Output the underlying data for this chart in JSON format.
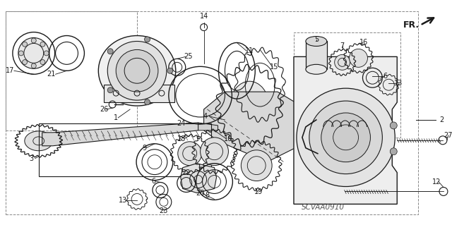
{
  "bg_color": "#ffffff",
  "part_code": "SCVAA0910",
  "fr_text": "FR.",
  "line_color": "#1a1a1a",
  "fig_w": 6.4,
  "fig_h": 3.19,
  "dpi": 100,
  "xlim": [
    0,
    640
  ],
  "ylim": [
    0,
    319
  ]
}
